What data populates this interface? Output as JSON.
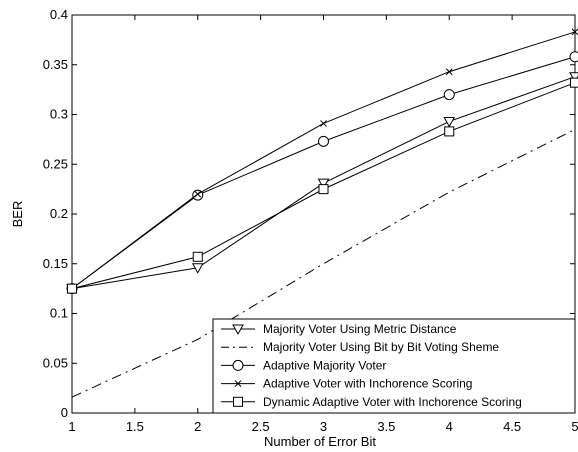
{
  "chart_data": {
    "type": "line",
    "xlabel": "Number of Error Bit",
    "ylabel": "BER",
    "xlim": [
      1,
      5
    ],
    "ylim": [
      0,
      0.4
    ],
    "xticks": [
      "1",
      "1.5",
      "2",
      "2.5",
      "3",
      "3.5",
      "4",
      "4.5",
      "5"
    ],
    "yticks": [
      "0",
      "0.05",
      "0.1",
      "0.15",
      "0.2",
      "0.25",
      "0.3",
      "0.35",
      "0.4"
    ],
    "grid": false,
    "legend_position": "bottom-right",
    "x": [
      1,
      2,
      3,
      4,
      5
    ],
    "series": [
      {
        "name": "Majority Voter Using Metric Distance",
        "marker": "triangle-down",
        "line": "solid",
        "values": [
          0.125,
          0.146,
          0.231,
          0.293,
          0.338
        ]
      },
      {
        "name": "Majority Voter Using Bit by Bit Voting Sheme",
        "marker": "none",
        "line": "dash-dot",
        "values": [
          0.016,
          0.074,
          0.15,
          0.222,
          0.285
        ]
      },
      {
        "name": "Adaptive Majority Voter",
        "marker": "circle",
        "line": "solid",
        "values": [
          0.125,
          0.219,
          0.273,
          0.32,
          0.358
        ]
      },
      {
        "name": "Adaptive Voter with Inchorence Scoring",
        "marker": "x",
        "line": "solid",
        "values": [
          0.125,
          0.22,
          0.291,
          0.343,
          0.383
        ]
      },
      {
        "name": "Dynamic Adaptive Voter with Inchorence Scoring",
        "marker": "square",
        "line": "solid",
        "values": [
          0.125,
          0.157,
          0.225,
          0.283,
          0.332
        ]
      }
    ]
  }
}
